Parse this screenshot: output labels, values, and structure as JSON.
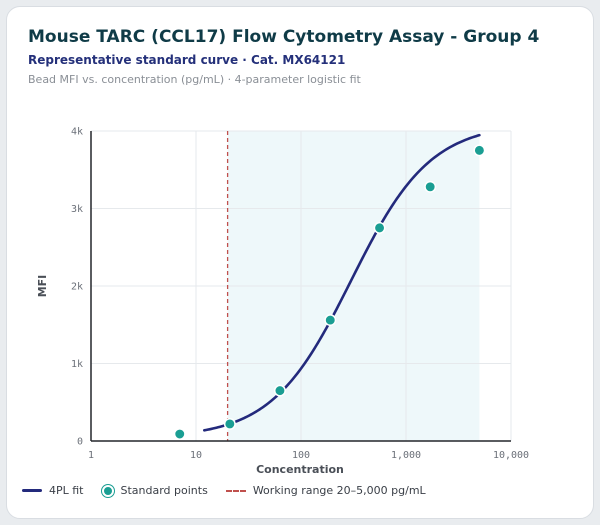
{
  "header": {
    "title": "Mouse TARC (CCL17) Flow Cytometry Assay - Group 4",
    "subtitle": "Representative standard curve · Cat. MX64121",
    "caption": "Bead MFI vs. concentration (pg/mL) · 4-parameter logistic fit"
  },
  "legend": {
    "fit": "4PL fit",
    "points": "Standard points",
    "range": "Working range 20–5,000 pg/mL"
  },
  "colors": {
    "fit": "#232a7c",
    "points": "#1a9e93",
    "range_line": "#c0504d",
    "range_fill": "#eef8fa"
  },
  "chart_data": {
    "type": "scatter",
    "xlabel": "Concentration",
    "ylabel": "MFI",
    "x_scale": "log",
    "xlim": [
      1,
      10000
    ],
    "ylim": [
      0,
      4000
    ],
    "x_ticks": [
      1,
      10,
      100,
      1000,
      10000
    ],
    "x_tick_labels": [
      "1",
      "10",
      "100",
      "1,000",
      "10,000"
    ],
    "y_ticks": [
      0,
      1000,
      2000,
      3000,
      4000
    ],
    "y_tick_labels": [
      "0",
      "1k",
      "2k",
      "3k",
      "4k"
    ],
    "grid": true,
    "working_range": [
      20,
      5000
    ],
    "points": [
      {
        "x": 7,
        "y": 90
      },
      {
        "x": 21,
        "y": 220
      },
      {
        "x": 63,
        "y": 650
      },
      {
        "x": 190,
        "y": 1560
      },
      {
        "x": 560,
        "y": 2750
      },
      {
        "x": 1700,
        "y": 3280
      },
      {
        "x": 5000,
        "y": 3750
      }
    ],
    "fit": {
      "a": 40,
      "d": 4100,
      "c": 300,
      "b": 1.15,
      "x_range": [
        12,
        5000
      ]
    }
  }
}
